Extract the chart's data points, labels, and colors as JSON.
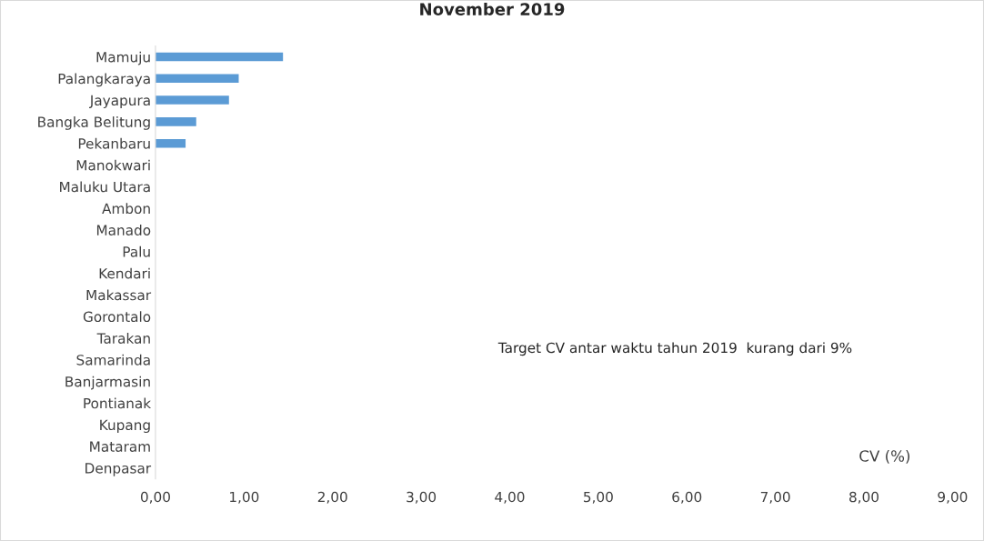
{
  "chart_data": {
    "type": "bar",
    "orientation": "horizontal",
    "title": "November 2019",
    "categories": [
      "Mamuju",
      "Palangkaraya",
      "Jayapura",
      "Bangka Belitung",
      "Pekanbaru",
      "Manokwari",
      "Maluku Utara",
      "Ambon",
      "Manado",
      "Palu",
      "Kendari",
      "Makassar",
      "Gorontalo",
      "Tarakan",
      "Samarinda",
      "Banjarmasin",
      "Pontianak",
      "Kupang",
      "Mataram",
      "Denpasar"
    ],
    "values": [
      1.44,
      0.94,
      0.83,
      0.46,
      0.34,
      0,
      0,
      0,
      0,
      0,
      0,
      0,
      0,
      0,
      0,
      0,
      0,
      0,
      0,
      0
    ],
    "color": "#5b9bd5",
    "xlim": [
      0,
      9
    ],
    "xticks": [
      {
        "value": 0,
        "label": "0,00"
      },
      {
        "value": 1,
        "label": "1,00"
      },
      {
        "value": 2,
        "label": "2,00"
      },
      {
        "value": 3,
        "label": "3,00"
      },
      {
        "value": 4,
        "label": "4,00"
      },
      {
        "value": 5,
        "label": "5,00"
      },
      {
        "value": 6,
        "label": "6,00"
      },
      {
        "value": 7,
        "label": "7,00"
      },
      {
        "value": 8,
        "label": "8,00"
      },
      {
        "value": 9,
        "label": "9,00"
      }
    ],
    "xlabel": "CV (%)",
    "annotations": [
      "Target CV antar waktu tahun 2019  kurang dari 9%"
    ],
    "grid": false,
    "legend": false
  }
}
